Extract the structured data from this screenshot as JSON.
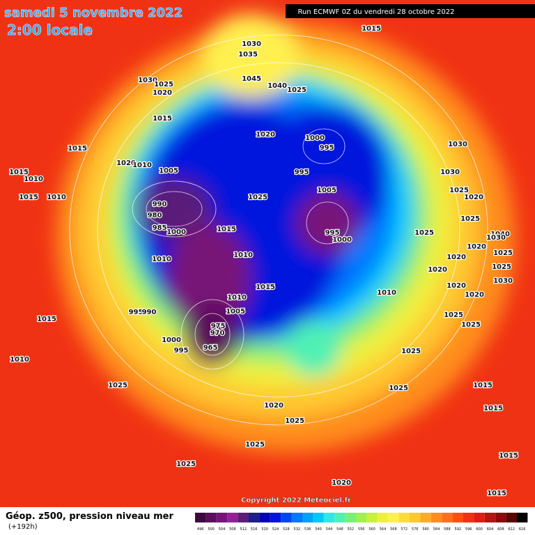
{
  "header": {
    "date": "samedi 5 novembre 2022",
    "time": "2:00 locale",
    "run": "Run ECMWF 0Z du vendredi 28 octobre 2022"
  },
  "isobar_labels": [
    1015,
    1030,
    1035,
    1030,
    1025,
    1020,
    1045,
    1040,
    1025,
    1015,
    1015,
    1020,
    1000,
    995,
    1030,
    1020,
    1010,
    1005,
    995,
    1015,
    1010,
    1030,
    1005,
    1025,
    1015,
    1010,
    1025,
    1020,
    990,
    1025,
    980,
    1025,
    995,
    985,
    1000,
    1015,
    1000,
    1040,
    1030,
    1020,
    1025,
    1010,
    1010,
    1020,
    1025,
    1020,
    1030,
    1020,
    1015,
    1010,
    1020,
    1010,
    995,
    990,
    1005,
    1025,
    1015,
    1025,
    975,
    970,
    1000,
    995,
    965,
    1025,
    1010,
    1025,
    1025,
    1015,
    1020,
    1015,
    1025,
    1025,
    1025,
    1015,
    1020,
    1015
  ],
  "copyright": "Copyright 2022 Meteociel.fr",
  "legend": {
    "title": "Géop. z500, pression niveau mer",
    "lead": "(+192h)",
    "levels": [
      496,
      500,
      504,
      508,
      512,
      516,
      520,
      524,
      528,
      532,
      536,
      540,
      544,
      548,
      552,
      556,
      560,
      564,
      568,
      572,
      576,
      580,
      584,
      588,
      592,
      596,
      600,
      604,
      608,
      612,
      616
    ],
    "colors": [
      "#3c0a3c",
      "#5a0f5a",
      "#781478",
      "#961e96",
      "#5a1e78",
      "#1e1e8c",
      "#0000b4",
      "#0014dc",
      "#0046f0",
      "#0078ff",
      "#00a0ff",
      "#00c8ff",
      "#32e6e6",
      "#50f0b4",
      "#78f078",
      "#a0f050",
      "#c8f03c",
      "#f0f03c",
      "#fff050",
      "#ffdc3c",
      "#ffc832",
      "#ffaa28",
      "#ff8c1e",
      "#ff6e1e",
      "#ff5014",
      "#f03214",
      "#dc1e14",
      "#b41414",
      "#8c0a0a",
      "#5a0505",
      "#000000"
    ]
  }
}
